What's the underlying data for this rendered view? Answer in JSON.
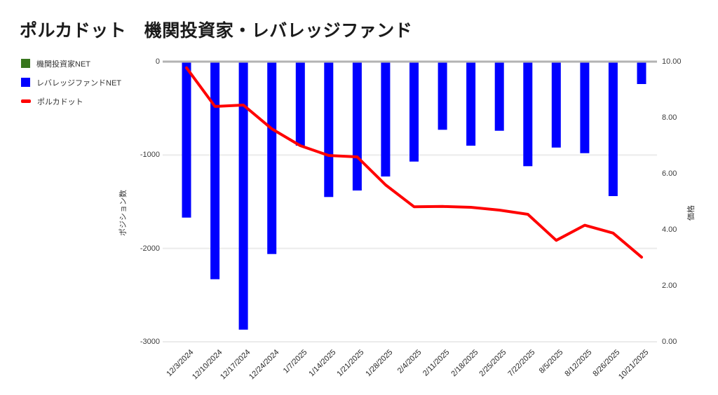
{
  "chart_data": {
    "type": "bar",
    "title": "ポルカドット　機関投資家・レバレッジファンド",
    "legend_position": "top-left",
    "categories": [
      "12/3/2024",
      "12/10/2024",
      "12/17/2024",
      "12/24/2024",
      "1/7/2025",
      "1/14/2025",
      "1/21/2025",
      "1/28/2025",
      "2/4/2025",
      "2/11/2025",
      "2/18/2025",
      "2/25/2025",
      "7/22/2025",
      "8/5/2025",
      "8/12/2025",
      "8/26/2025",
      "10/21/2025"
    ],
    "series": [
      {
        "key": "institutional-net",
        "name": "機関投資家NET",
        "chart_type": "bar",
        "axis": "left",
        "color": "#38761d",
        "values": [
          0,
          0,
          0,
          0,
          0,
          0,
          0,
          0,
          0,
          0,
          0,
          0,
          0,
          0,
          0,
          0,
          0
        ]
      },
      {
        "key": "leverage-fund-net",
        "name": "レバレッジファンドNET",
        "chart_type": "bar",
        "axis": "left",
        "color": "#0000ff",
        "values": [
          -1670,
          -2330,
          -2870,
          -2060,
          -900,
          -1450,
          -1380,
          -1230,
          -1070,
          -730,
          -900,
          -740,
          -1120,
          -920,
          -980,
          -1440,
          -240
        ]
      },
      {
        "key": "polkadot",
        "name": "ポルカドット",
        "chart_type": "line",
        "axis": "right",
        "color": "#ff0000",
        "values": [
          9.78,
          8.4,
          8.45,
          7.6,
          7.0,
          6.65,
          6.6,
          5.6,
          4.82,
          4.83,
          4.8,
          4.7,
          4.55,
          3.62,
          4.16,
          3.88,
          3.02
        ]
      }
    ],
    "left_axis": {
      "title": "ポジション数",
      "tick_labels": [
        "0",
        "-1000",
        "-2000",
        "-3000"
      ],
      "tick_values": [
        0,
        -1000,
        -2000,
        -3000
      ],
      "range": [
        -3000,
        0
      ]
    },
    "right_axis": {
      "title": "価格",
      "tick_labels": [
        "10.00",
        "8.00",
        "6.00",
        "4.00",
        "2.00",
        "0.00"
      ],
      "tick_values": [
        10,
        8,
        6,
        4,
        2,
        0
      ],
      "range": [
        0,
        10
      ]
    },
    "grid": {
      "horizontal_gridlines": true,
      "gridline_color": "#ebebeb",
      "zero_line_color": "#b3b3b3"
    }
  }
}
